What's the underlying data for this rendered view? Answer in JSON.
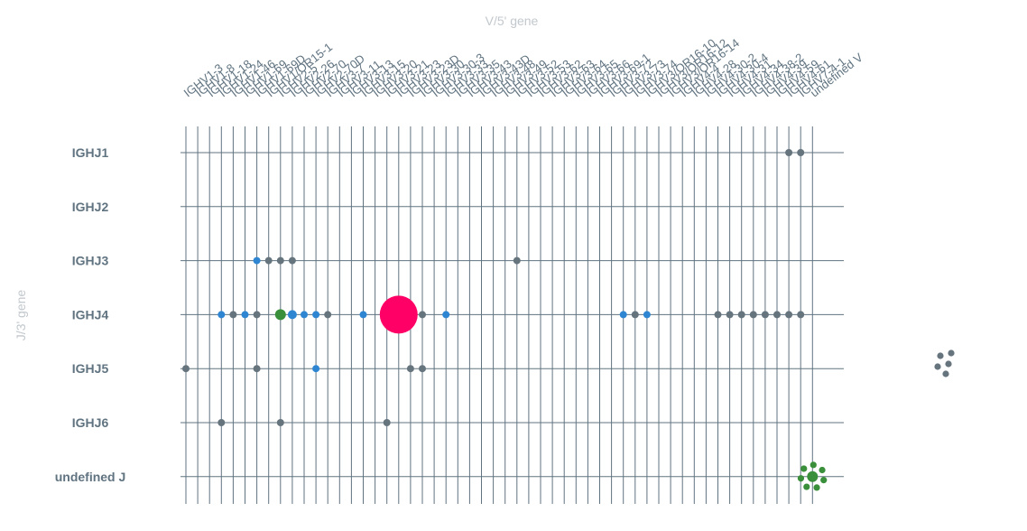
{
  "chart_data": {
    "type": "scatter",
    "title": "",
    "xlabel": "V/5' gene",
    "ylabel": "J/3' gene",
    "grid": true,
    "colors": {
      "grid": "#607380",
      "grey": "#66747e",
      "blue": "#2e86d3",
      "green": "#3a8f3a",
      "pink": "#ff0066"
    },
    "x_categories": [
      "IGHV1-3",
      "IGHV1-8",
      "IGHV1-18",
      "IGHV1-24",
      "IGHV1-46",
      "IGHV1-69",
      "IGHV1-69D",
      "IGHV1/OR15-1",
      "IGHV2-5",
      "IGHV2-26",
      "IGHV2-70",
      "IGHV2-70D",
      "IGHV3-7",
      "IGHV3-11",
      "IGHV3-13",
      "IGHV3-15",
      "IGHV3-20",
      "IGHV3-21",
      "IGHV3-23",
      "IGHV3-23D",
      "IGHV3-30",
      "IGHV3-30-3",
      "IGHV3-33",
      "IGHV3-35",
      "IGHV3-43",
      "IGHV3-43D",
      "IGHV3-48",
      "IGHV3-49",
      "IGHV3-52",
      "IGHV3-53",
      "IGHV3-62",
      "IGHV3-63",
      "IGHV3-64",
      "IGHV3-65",
      "IGHV3-66",
      "IGHV3-69-1",
      "IGHV3-72",
      "IGHV3-73",
      "IGHV3-74",
      "IGHV3/OR16-10",
      "IGHV3/OR16-12",
      "IGHV3/OR16-14",
      "IGHV4-4",
      "IGHV4-28",
      "IGHV4-30-2",
      "IGHV4-30-4",
      "IGHV4-31",
      "IGHV4-34",
      "IGHV4-38-2",
      "IGHV4-39",
      "IGHV4-59",
      "IGHV4-61",
      "IGHV7-4-1",
      "undefined V"
    ],
    "y_categories": [
      "IGHJ1",
      "IGHJ2",
      "IGHJ3",
      "IGHJ4",
      "IGHJ5",
      "IGHJ6",
      "undefined J"
    ],
    "points": [
      {
        "v": "IGHV4-61",
        "j": "IGHJ1",
        "color": "grey",
        "size": 4
      },
      {
        "v": "IGHV7-4-1",
        "j": "IGHJ1",
        "color": "grey",
        "size": 4
      },
      {
        "v": "IGHV1-69D",
        "j": "IGHJ3",
        "color": "blue",
        "size": 4
      },
      {
        "v": "IGHV1/OR15-1",
        "j": "IGHJ3",
        "color": "grey",
        "size": 4
      },
      {
        "v": "IGHV2-5",
        "j": "IGHJ3",
        "color": "grey",
        "size": 4
      },
      {
        "v": "IGHV2-26",
        "j": "IGHJ3",
        "color": "grey",
        "size": 4
      },
      {
        "v": "IGHV3-52",
        "j": "IGHJ3",
        "color": "grey",
        "size": 4
      },
      {
        "v": "IGHV1-24",
        "j": "IGHJ4",
        "color": "blue",
        "size": 4
      },
      {
        "v": "IGHV1-46",
        "j": "IGHJ4",
        "color": "grey",
        "size": 4
      },
      {
        "v": "IGHV1-69",
        "j": "IGHJ4",
        "color": "blue",
        "size": 4
      },
      {
        "v": "IGHV1-69D",
        "j": "IGHJ4",
        "color": "grey",
        "size": 4
      },
      {
        "v": "IGHV2-5",
        "j": "IGHJ4",
        "color": "green",
        "size": 6
      },
      {
        "v": "IGHV2-26",
        "j": "IGHJ4",
        "color": "blue",
        "size": 5
      },
      {
        "v": "IGHV2-70",
        "j": "IGHJ4",
        "color": "blue",
        "size": 4
      },
      {
        "v": "IGHV2-70D",
        "j": "IGHJ4",
        "color": "blue",
        "size": 4
      },
      {
        "v": "IGHV3-7",
        "j": "IGHJ4",
        "color": "grey",
        "size": 4
      },
      {
        "v": "IGHV3-15",
        "j": "IGHJ4",
        "color": "blue",
        "size": 4
      },
      {
        "v": "IGHV3-21",
        "j": "IGHJ4",
        "color": "blue",
        "size": 4
      },
      {
        "v": "IGHV3-23",
        "j": "IGHJ4",
        "color": "pink",
        "size": 21
      },
      {
        "v": "IGHV3-30",
        "j": "IGHJ4",
        "color": "grey",
        "size": 4
      },
      {
        "v": "IGHV3-33",
        "j": "IGHJ4",
        "color": "blue",
        "size": 4
      },
      {
        "v": "IGHV3-73",
        "j": "IGHJ4",
        "color": "blue",
        "size": 4
      },
      {
        "v": "IGHV3-74",
        "j": "IGHJ4",
        "color": "grey",
        "size": 4
      },
      {
        "v": "IGHV3/OR16-10",
        "j": "IGHJ4",
        "color": "blue",
        "size": 4
      },
      {
        "v": "IGHV4-30-4",
        "j": "IGHJ4",
        "color": "grey",
        "size": 4
      },
      {
        "v": "IGHV4-31",
        "j": "IGHJ4",
        "color": "grey",
        "size": 4
      },
      {
        "v": "IGHV4-34",
        "j": "IGHJ4",
        "color": "grey",
        "size": 4
      },
      {
        "v": "IGHV4-38-2",
        "j": "IGHJ4",
        "color": "grey",
        "size": 4
      },
      {
        "v": "IGHV4-39",
        "j": "IGHJ4",
        "color": "grey",
        "size": 4
      },
      {
        "v": "IGHV4-59",
        "j": "IGHJ4",
        "color": "grey",
        "size": 4
      },
      {
        "v": "IGHV4-61",
        "j": "IGHJ4",
        "color": "grey",
        "size": 4
      },
      {
        "v": "IGHV7-4-1",
        "j": "IGHJ4",
        "color": "grey",
        "size": 4
      },
      {
        "v": "IGHV1-3",
        "j": "IGHJ5",
        "color": "grey",
        "size": 4
      },
      {
        "v": "IGHV1-69D",
        "j": "IGHJ5",
        "color": "grey",
        "size": 4
      },
      {
        "v": "IGHV2-70D",
        "j": "IGHJ5",
        "color": "blue",
        "size": 4
      },
      {
        "v": "IGHV3-23D",
        "j": "IGHJ5",
        "color": "grey",
        "size": 4
      },
      {
        "v": "IGHV3-30",
        "j": "IGHJ5",
        "color": "grey",
        "size": 4
      },
      {
        "v": "IGHV1-24",
        "j": "IGHJ6",
        "color": "grey",
        "size": 4
      },
      {
        "v": "IGHV2-5",
        "j": "IGHJ6",
        "color": "grey",
        "size": 4
      },
      {
        "v": "IGHV3-21",
        "j": "IGHJ6",
        "color": "grey",
        "size": 4
      },
      {
        "v": "undefined V",
        "j": "undefined J",
        "color": "green",
        "size": 6
      }
    ]
  }
}
